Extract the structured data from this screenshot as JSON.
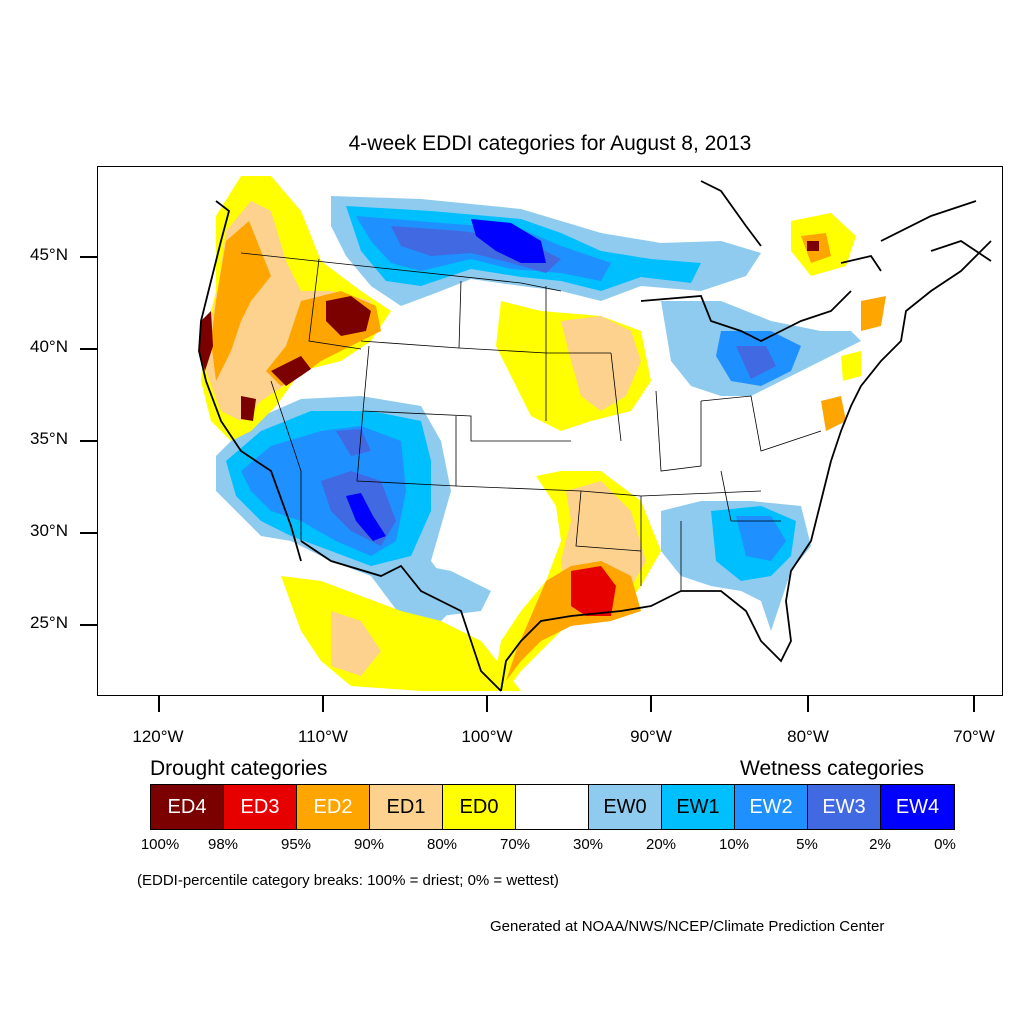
{
  "title": "4-week EDDI categories for August 8, 2013",
  "map": {
    "type": "choropleth-map",
    "region": "Contiguous United States",
    "lat_labels": [
      "45°N",
      "40°N",
      "35°N",
      "30°N",
      "25°N"
    ],
    "lon_labels": [
      "120°W",
      "110°W",
      "100°W",
      "90°W",
      "80°W",
      "70°W"
    ]
  },
  "legend": {
    "drought_heading": "Drought categories",
    "wetness_heading": "Wetness categories",
    "categories": [
      {
        "label": "ED4",
        "color": "#7b0000",
        "text_color": "#ffffff"
      },
      {
        "label": "ED3",
        "color": "#e60000",
        "text_color": "#ffffff"
      },
      {
        "label": "ED2",
        "color": "#ffa500",
        "text_color": "#ffffff"
      },
      {
        "label": "ED1",
        "color": "#fcd28e",
        "text_color": "#000000"
      },
      {
        "label": "ED0",
        "color": "#ffff00",
        "text_color": "#000000"
      },
      {
        "label": "",
        "color": "#ffffff",
        "text_color": "#000000"
      },
      {
        "label": "EW0",
        "color": "#8ecbef",
        "text_color": "#000000"
      },
      {
        "label": "EW1",
        "color": "#00bfff",
        "text_color": "#000000"
      },
      {
        "label": "EW2",
        "color": "#1e90ff",
        "text_color": "#ffffff"
      },
      {
        "label": "EW3",
        "color": "#4169e1",
        "text_color": "#ffffff"
      },
      {
        "label": "EW4",
        "color": "#0000ff",
        "text_color": "#ffffff"
      }
    ],
    "breaks": [
      "100%",
      "98%",
      "95%",
      "90%",
      "80%",
      "70%",
      "30%",
      "20%",
      "10%",
      "5%",
      "2%",
      "0%"
    ]
  },
  "note": "(EDDI-percentile category breaks: 100% = driest; 0% = wettest)",
  "credit": "Generated at NOAA/NWS/NCEP/Climate Prediction Center"
}
